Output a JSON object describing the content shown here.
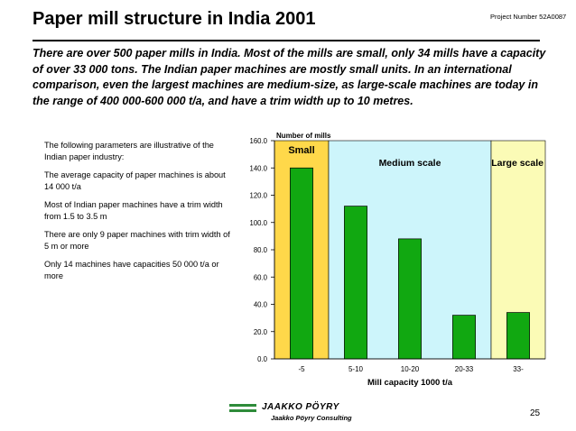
{
  "header": {
    "title": "Paper mill structure in India 2001",
    "project_number": "Project Number 52A0087"
  },
  "intro_text": "There are over 500 paper mills in India.  Most of the mills are small, only 34 mills have a capacity of over 33 000 tons. The Indian paper machines are mostly small units. In an international comparison, even the largest machines are medium-size, as large-scale machines are today in the range of 400 000-600 000 t/a, and have a trim width up to 10 metres.",
  "parameters": [
    "The following parameters are illustrative of the Indian paper industry:",
    "The average capacity of paper machines is about 14 000 t/a",
    "Most of Indian paper machines have a trim width from 1.5 to 3.5 m",
    "There are only 9 paper machines with trim width of 5 m or more",
    "Only 14 machines have capacities 50 000 t/a or more"
  ],
  "chart_data": {
    "type": "bar",
    "title": "Number of mills",
    "xlabel": "Mill capacity 1000 t/a",
    "ylabel": "",
    "categories": [
      "-5",
      "5-10",
      "10-20",
      "20-33",
      "33-"
    ],
    "values": [
      140,
      112,
      88,
      32,
      34
    ],
    "ylim": [
      0,
      160
    ],
    "yticks": [
      "0.0",
      "20.0",
      "40.0",
      "60.0",
      "80.0",
      "100.0",
      "120.0",
      "140.0",
      "160.0"
    ],
    "regions": [
      {
        "label": "Small",
        "categories": [
          "-5"
        ],
        "color": "#ffd84a"
      },
      {
        "label": "Medium scale",
        "categories": [
          "5-10",
          "10-20",
          "20-33"
        ],
        "color": "#cdf5fb"
      },
      {
        "label": "Large scale",
        "categories": [
          "33-"
        ],
        "color": "#fbfbb6"
      }
    ],
    "bar_color": "#11a811",
    "grid": false
  },
  "footer": {
    "company": "JAAKKO PÖYRY",
    "company_sub": "Jaakko Pöyry Consulting",
    "page_number": "25"
  }
}
